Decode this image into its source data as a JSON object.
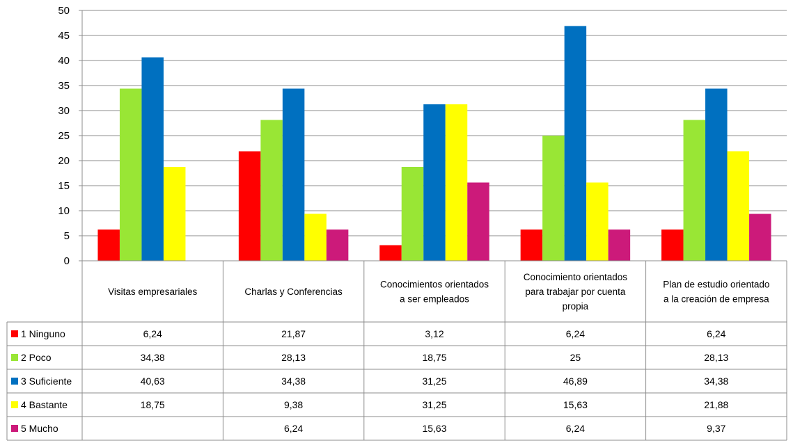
{
  "chart_data": {
    "type": "bar",
    "ylim": [
      0,
      50
    ],
    "yticks": [
      "0",
      "5",
      "10",
      "15",
      "20",
      "25",
      "30",
      "35",
      "40",
      "45",
      "50"
    ],
    "grid": true,
    "legend": "data-table-left",
    "categories": [
      "Visitas empresariales",
      "Charlas y Conferencias",
      "Conocimientos orientados a ser empleados",
      "Conocimiento orientados para trabajar por cuenta propia",
      "Plan de estudio orientado a la creación de empresa"
    ],
    "category_lines": [
      [
        "Visitas empresariales"
      ],
      [
        "Charlas y Conferencias"
      ],
      [
        "Conocimientos orientados",
        "a ser empleados"
      ],
      [
        "Conocimiento orientados",
        "para trabajar por cuenta",
        "propia"
      ],
      [
        "Plan de estudio orientado",
        "a la creación de empresa"
      ]
    ],
    "series": [
      {
        "name": "1 Ninguno",
        "color": "#FF0000",
        "values": [
          6.24,
          21.87,
          3.12,
          6.24,
          6.24
        ],
        "labels": [
          "6,24",
          "21,87",
          "3,12",
          "6,24",
          "6,24"
        ]
      },
      {
        "name": "2 Poco",
        "color": "#99E635",
        "values": [
          34.38,
          28.13,
          18.75,
          25,
          28.13
        ],
        "labels": [
          "34,38",
          "28,13",
          "18,75",
          "25",
          "28,13"
        ]
      },
      {
        "name": "3 Suficiente",
        "color": "#0070C0",
        "values": [
          40.63,
          34.38,
          31.25,
          46.89,
          34.38
        ],
        "labels": [
          "40,63",
          "34,38",
          "31,25",
          "46,89",
          "34,38"
        ]
      },
      {
        "name": "4 Bastante",
        "color": "#FFFF00",
        "values": [
          18.75,
          9.38,
          31.25,
          15.63,
          21.88
        ],
        "labels": [
          "18,75",
          "9,38",
          "31,25",
          "15,63",
          "21,88"
        ]
      },
      {
        "name": "5 Mucho",
        "color": "#CC1A7A",
        "values": [
          null,
          6.24,
          15.63,
          6.24,
          9.37
        ],
        "labels": [
          "",
          "6,24",
          "15,63",
          "6,24",
          "9,37"
        ]
      }
    ]
  }
}
